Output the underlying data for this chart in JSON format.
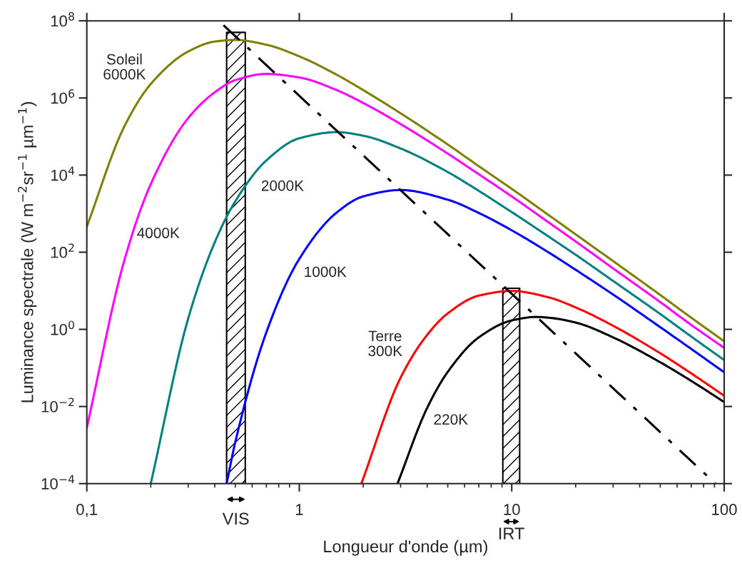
{
  "chart_data": {
    "type": "line",
    "xlabel": "Longueur d'onde (µm)",
    "ylabel": "Luminance spectrale (W m$^{−2}$sr$^{−1}$ µm$^{−1}$)",
    "log": "xy",
    "xlim": [
      0.1,
      100
    ],
    "ylim": [
      0.0001,
      100000000
    ],
    "xticks": [
      {
        "value": 0.1,
        "label": "0,1"
      },
      1,
      10,
      100
    ],
    "yticks": [
      {
        "value": 0.0001,
        "label": "10$^{−4}$"
      },
      {
        "value": 0.01,
        "label": "10$^{−2}$"
      },
      {
        "value": 1,
        "label": "10$^{0}$"
      },
      {
        "value": 100,
        "label": "10$^{2}$"
      },
      {
        "value": 10000,
        "label": "10$^{4}$"
      },
      {
        "value": 1000000,
        "label": "10$^{6}$"
      },
      {
        "value": 100000000,
        "label": "10$^{8}$"
      }
    ],
    "grid": false,
    "legend": false,
    "series": [
      {
        "color": "#808000",
        "x": [
          0.1,
          0.15,
          0.2,
          0.3,
          0.4,
          0.5,
          0.7,
          1,
          1.5,
          2,
          3,
          5,
          7,
          10,
          15,
          20,
          30,
          50,
          70,
          100
        ],
        "values": [
          460.0,
          180000.0,
          2300000.0,
          16000000.0,
          29000000.0,
          32000000.0,
          24000000.0,
          12000000.0,
          4000000.0,
          1600000.0,
          400000.0,
          62000.0,
          17000.0,
          4400.0,
          900.0,
          290.0,
          59.0,
          7.8,
          2.0,
          0.49
        ]
      },
      {
        "color": "#ff00ff",
        "x": [
          0.1,
          0.15,
          0.2,
          0.3,
          0.4,
          0.5,
          0.7,
          1,
          1.5,
          2,
          3,
          5,
          7,
          10,
          15,
          20,
          30,
          50,
          70,
          100
        ],
        "values": [
          0.0028,
          60,
          5800.0,
          300000.0,
          1400000.0,
          2900000.0,
          4200000.0,
          3400000.0,
          1600000.0,
          740000.0,
          210000.0,
          36000.0,
          10500.0,
          2800.0,
          580.0,
          190.0,
          38,
          5.1,
          1.3,
          0.33
        ]
      },
      {
        "color": "#008080",
        "x": [
          0.2,
          0.3,
          0.4,
          0.5,
          0.7,
          1,
          1.5,
          2,
          3,
          5,
          7,
          10,
          15,
          20,
          30,
          50,
          70,
          100
        ],
        "values": [
          0.0001,
          1.9,
          180.0,
          2100.0,
          24000.0,
          90000.0,
          130000.0,
          105000.0,
          49000.0,
          12000.0,
          3900.0,
          1100.0,
          250.0,
          86,
          18,
          2.5,
          0.65,
          0.16
        ]
      },
      {
        "color": "#0000ff",
        "x": [
          0.455,
          0.5,
          0.7,
          1,
          1.5,
          2,
          3,
          5,
          7,
          10,
          15,
          20,
          30,
          50,
          70,
          100
        ],
        "values": [
          0.0001,
          0.0012,
          0.84,
          67,
          1070.0,
          2800.0,
          4100.0,
          2300.0,
          1040.0,
          370.0,
          97,
          35,
          8.0,
          1.14,
          0.31,
          0.077
        ]
      },
      {
        "color": "#ff0000",
        "x": [
          1.96,
          3,
          4,
          5,
          7,
          10,
          15,
          20,
          30,
          50,
          70,
          100
        ],
        "values": [
          0.0001,
          0.056,
          0.72,
          2.6,
          7.5,
          9.9,
          6.7,
          3.7,
          1.24,
          0.24,
          0.072,
          0.019
        ]
      },
      {
        "color": "#000000",
        "x": [
          2.9,
          4,
          5,
          7,
          10,
          13,
          15,
          20,
          30,
          50,
          70,
          100
        ],
        "values": [
          0.0001,
          0.0092,
          0.079,
          0.62,
          1.7,
          2.1,
          2.0,
          1.5,
          0.62,
          0.14,
          0.046,
          0.013
        ]
      },
      {
        "color": "#000000",
        "line_style": "dashdot",
        "x": [
          0.44,
          91
        ],
        "values": [
          77000000.0,
          0.0001
        ]
      }
    ],
    "bands": [
      {
        "axis": "x",
        "from": 0.455,
        "to": 0.557,
        "label": "VIS",
        "color": "#000000"
      },
      {
        "axis": "x",
        "from": 9.08,
        "to": 10.9,
        "label": "IRT",
        "color": "#000000"
      }
    ],
    "annotations": [
      "Soleil\n6000K",
      "4000K",
      "2000K",
      "1000K",
      "Terre\n300K",
      "220K"
    ]
  }
}
